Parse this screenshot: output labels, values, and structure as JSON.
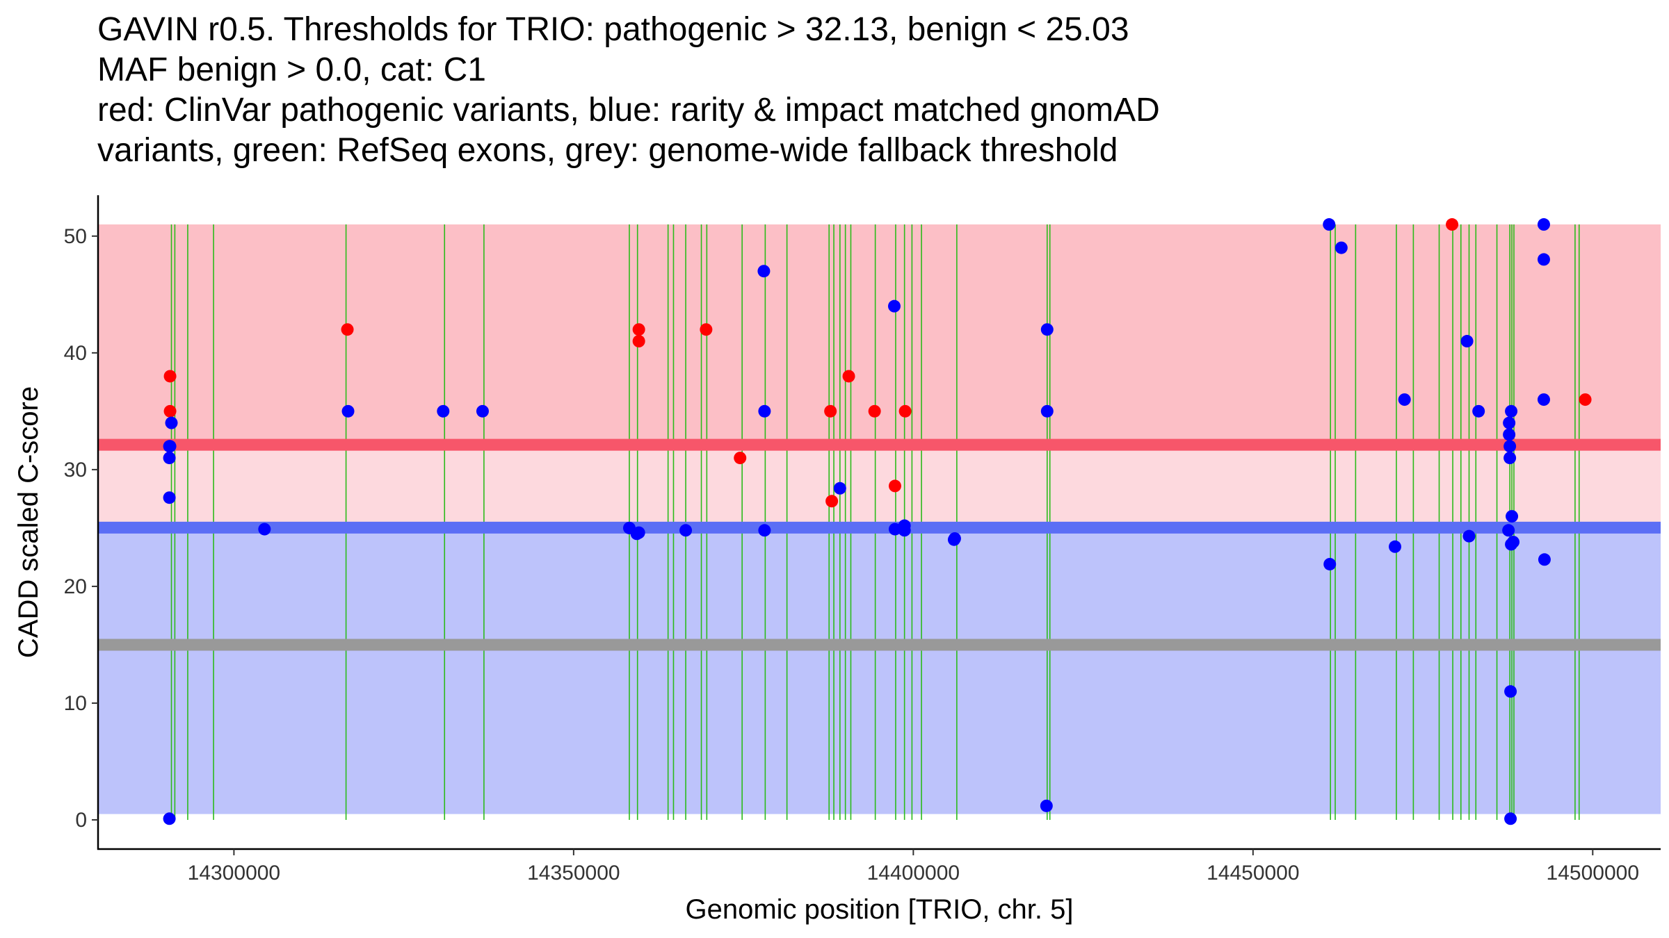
{
  "chart_data": {
    "type": "scatter",
    "title_lines": [
      "GAVIN r0.5. Thresholds for TRIO: pathogenic > 32.13, benign < 25.03",
      "MAF benign > 0.0, cat: C1",
      "red: ClinVar pathogenic variants, blue: rarity & impact matched gnomAD",
      "variants, green: RefSeq exons, grey: genome-wide fallback threshold"
    ],
    "xlabel": "Genomic position [TRIO, chr. 5]",
    "ylabel": "CADD scaled C-score",
    "xlim": [
      14280000,
      14510000
    ],
    "ylim": [
      -2.5,
      53.5
    ],
    "x_ticks": [
      14300000,
      14350000,
      14400000,
      14450000,
      14500000
    ],
    "x_tick_labels": [
      "14300000",
      "14350000",
      "14400000",
      "14450000",
      "14500000"
    ],
    "y_ticks": [
      0,
      10,
      20,
      30,
      40,
      50
    ],
    "y_tick_labels": [
      "0",
      "10",
      "20",
      "30",
      "40",
      "50"
    ],
    "bands": [
      {
        "name": "pathogenic-zone",
        "ymin": 32.13,
        "ymax": 51,
        "color": "#fcbfc6"
      },
      {
        "name": "intermediate-zone",
        "ymin": 25.03,
        "ymax": 32.13,
        "color": "#fdd9de"
      },
      {
        "name": "benign-zone",
        "ymin": 0.5,
        "ymax": 25.03,
        "color": "#bdc3fb"
      }
    ],
    "thresholds": [
      {
        "name": "pathogenic-threshold",
        "y": 32.13,
        "color": "#f7566a"
      },
      {
        "name": "benign-threshold",
        "y": 25.03,
        "color": "#5b6ef5"
      },
      {
        "name": "fallback-threshold",
        "y": 15.0,
        "color": "#999999"
      }
    ],
    "exons": [
      14290800,
      14291300,
      14293200,
      14297000,
      14316500,
      14331000,
      14336800,
      14358200,
      14359400,
      14363900,
      14364700,
      14366500,
      14368800,
      14369600,
      14374800,
      14378200,
      14381400,
      14387600,
      14388300,
      14389200,
      14390000,
      14390800,
      14394400,
      14397400,
      14398700,
      14399800,
      14401200,
      14406400,
      14419700,
      14420100,
      14461400,
      14462100,
      14465100,
      14471100,
      14473600,
      14477400,
      14479400,
      14480600,
      14481800,
      14482800,
      14485900,
      14487800,
      14488100,
      14488400,
      14497400,
      14498000
    ],
    "exon_color": "#2bbb1a",
    "series": [
      {
        "name": "ClinVar pathogenic",
        "color": "#ff0000",
        "x": [
          14290600,
          14290600,
          14316700,
          14359600,
          14359600,
          14369500,
          14374500,
          14387800,
          14388000,
          14390500,
          14394300,
          14397300,
          14398800,
          14479300,
          14498900
        ],
        "y": [
          38,
          35,
          42,
          42,
          41,
          42,
          31,
          35,
          27.3,
          38,
          35,
          28.6,
          35,
          51,
          36
        ]
      },
      {
        "name": "gnomAD matched",
        "color": "#0000ff",
        "x": [
          14290500,
          14290500,
          14290500,
          14290500,
          14290800,
          14290600,
          14304500,
          14316800,
          14330800,
          14336600,
          14358200,
          14359300,
          14359600,
          14366500,
          14378000,
          14378100,
          14378100,
          14389200,
          14397200,
          14397300,
          14398700,
          14398700,
          14406000,
          14406100,
          14419600,
          14419700,
          14419700,
          14461200,
          14461300,
          14463000,
          14470900,
          14472300,
          14481500,
          14481800,
          14483200,
          14487600,
          14487700,
          14487700,
          14487800,
          14487800,
          14487900,
          14487900,
          14488000,
          14488000,
          14488100,
          14488300,
          14492800,
          14492800,
          14492800,
          14492900
        ],
        "y": [
          32,
          31,
          27.6,
          0.1,
          34,
          32,
          24.9,
          35,
          35,
          35,
          25,
          24.5,
          24.6,
          24.8,
          47,
          35,
          24.8,
          28.4,
          44,
          24.9,
          25.2,
          24.8,
          24,
          24.1,
          1.2,
          42,
          35,
          51,
          21.9,
          49,
          23.4,
          36,
          41,
          24.3,
          35,
          24.8,
          34,
          33,
          32,
          31,
          0.1,
          11,
          23.6,
          35,
          26,
          23.8,
          51,
          48,
          36,
          22.3
        ]
      }
    ]
  }
}
